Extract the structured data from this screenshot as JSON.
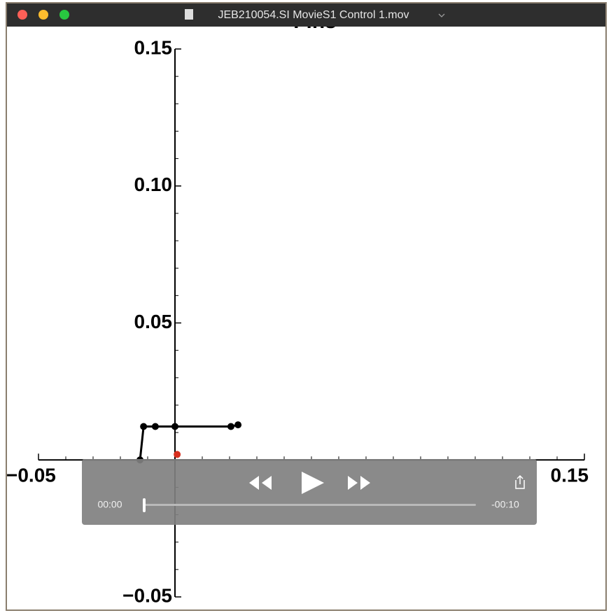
{
  "window": {
    "title": "JEB210054.SI MovieS1 Control 1.mov"
  },
  "player": {
    "elapsed": "00:00",
    "remaining": "-00:10"
  },
  "chart_data": {
    "type": "line",
    "title": "Fins",
    "xlim": [
      -0.05,
      0.15
    ],
    "ylim": [
      -0.05,
      0.15
    ],
    "xticks": [
      {
        "value": -0.05,
        "label": "−0.05"
      },
      {
        "value": 0.15,
        "label": "0.15"
      }
    ],
    "yticks": [
      {
        "value": 0.15,
        "label": "0.15"
      },
      {
        "value": 0.1,
        "label": "0.10"
      },
      {
        "value": 0.05,
        "label": "0.05"
      },
      {
        "value": -0.05,
        "label": "−0.05"
      }
    ],
    "xminor_ticks": [
      -0.05,
      -0.04,
      -0.03,
      -0.02,
      -0.01,
      0.01,
      0.02,
      0.03,
      0.04,
      0.05,
      0.06,
      0.07,
      0.08,
      0.09,
      0.1,
      0.11,
      0.12,
      0.13,
      0.14,
      0.15
    ],
    "yminor_ticks": [
      -0.05,
      -0.04,
      -0.03,
      -0.02,
      -0.01,
      0.01,
      0.02,
      0.03,
      0.04,
      0.05,
      0.06,
      0.07,
      0.08,
      0.09,
      0.1,
      0.11,
      0.12,
      0.13,
      0.14,
      0.15
    ],
    "series": [
      {
        "color": "#000000",
        "x": [
          -0.0128,
          -0.0115,
          -0.0072,
          0,
          0.0205,
          0.0231
        ],
        "values": [
          0,
          0.0122,
          0.0122,
          0.0122,
          0.0122,
          0.0128
        ]
      },
      {
        "color": "#d8301f",
        "x": [
          0.0008
        ],
        "values": [
          0.002
        ]
      }
    ]
  }
}
